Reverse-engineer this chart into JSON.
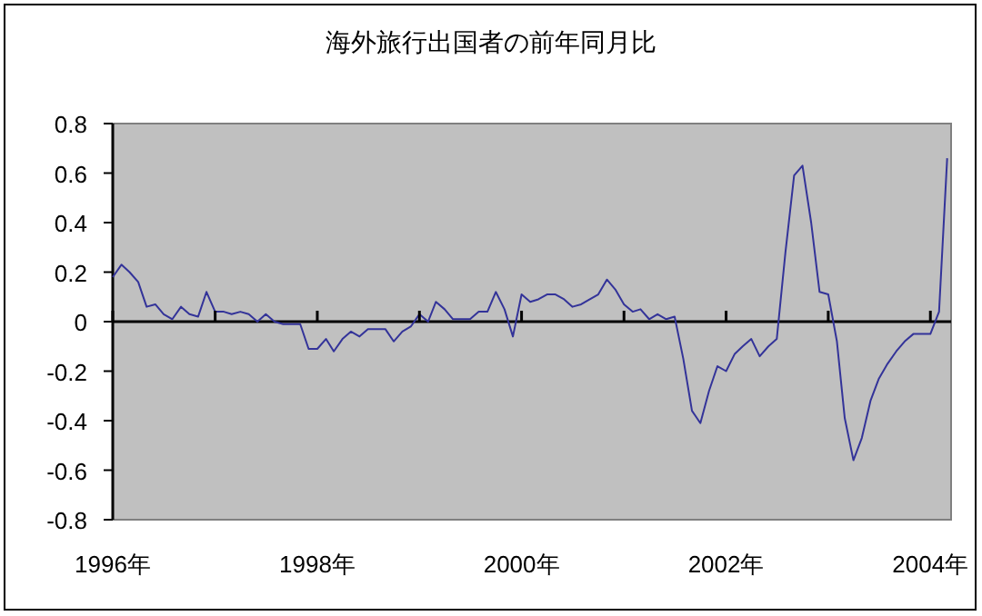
{
  "chart_data": {
    "type": "line",
    "title": "海外旅行出国者の前年同月比",
    "x": [
      "1996-01",
      "1996-02",
      "1996-03",
      "1996-04",
      "1996-05",
      "1996-06",
      "1996-07",
      "1996-08",
      "1996-09",
      "1996-10",
      "1996-11",
      "1996-12",
      "1997-01",
      "1997-02",
      "1997-03",
      "1997-04",
      "1997-05",
      "1997-06",
      "1997-07",
      "1997-08",
      "1997-09",
      "1997-10",
      "1997-11",
      "1997-12",
      "1998-01",
      "1998-02",
      "1998-03",
      "1998-04",
      "1998-05",
      "1998-06",
      "1998-07",
      "1998-08",
      "1998-09",
      "1998-10",
      "1998-11",
      "1998-12",
      "1999-01",
      "1999-02",
      "1999-03",
      "1999-04",
      "1999-05",
      "1999-06",
      "1999-07",
      "1999-08",
      "1999-09",
      "1999-10",
      "1999-11",
      "1999-12",
      "2000-01",
      "2000-02",
      "2000-03",
      "2000-04",
      "2000-05",
      "2000-06",
      "2000-07",
      "2000-08",
      "2000-09",
      "2000-10",
      "2000-11",
      "2000-12",
      "2001-01",
      "2001-02",
      "2001-03",
      "2001-04",
      "2001-05",
      "2001-06",
      "2001-07",
      "2001-08",
      "2001-09",
      "2001-10",
      "2001-11",
      "2001-12",
      "2002-01",
      "2002-02",
      "2002-03",
      "2002-04",
      "2002-05",
      "2002-06",
      "2002-07",
      "2002-08",
      "2002-09",
      "2002-10",
      "2002-11",
      "2002-12",
      "2003-01",
      "2003-02",
      "2003-03",
      "2003-04",
      "2003-05",
      "2003-06",
      "2003-07",
      "2003-08",
      "2003-09",
      "2003-10",
      "2003-11",
      "2003-12",
      "2004-01",
      "2004-02",
      "2004-03"
    ],
    "series": [
      {
        "color": "#333399",
        "values": [
          0.18,
          0.23,
          0.2,
          0.16,
          0.06,
          0.07,
          0.03,
          0.01,
          0.06,
          0.03,
          0.02,
          0.12,
          0.04,
          0.04,
          0.03,
          0.04,
          0.03,
          0.0,
          0.03,
          0.0,
          -0.01,
          -0.01,
          -0.01,
          -0.11,
          -0.11,
          -0.07,
          -0.12,
          -0.07,
          -0.04,
          -0.06,
          -0.03,
          -0.03,
          -0.03,
          -0.08,
          -0.04,
          -0.02,
          0.03,
          0.0,
          0.08,
          0.05,
          0.01,
          0.01,
          0.01,
          0.04,
          0.04,
          0.12,
          0.05,
          -0.06,
          0.11,
          0.08,
          0.09,
          0.11,
          0.11,
          0.09,
          0.06,
          0.07,
          0.09,
          0.11,
          0.17,
          0.13,
          0.07,
          0.04,
          0.05,
          0.01,
          0.03,
          0.01,
          0.02,
          -0.15,
          -0.36,
          -0.41,
          -0.28,
          -0.18,
          -0.2,
          -0.13,
          -0.1,
          -0.07,
          -0.14,
          -0.1,
          -0.07,
          0.28,
          0.59,
          0.63,
          0.4,
          0.12,
          0.11,
          -0.08,
          -0.39,
          -0.56,
          -0.47,
          -0.32,
          -0.23,
          -0.17,
          -0.12,
          -0.08,
          -0.05,
          -0.05,
          -0.05,
          0.04,
          0.66
        ]
      }
    ],
    "xlim": [
      "1996-01-01",
      "2004-03-15"
    ],
    "xticks": [
      {
        "value": "1996-01",
        "label": "1996年"
      },
      {
        "value": "1997-01",
        "label": null
      },
      {
        "value": "1998-01",
        "label": "1998年"
      },
      {
        "value": "1999-01",
        "label": null
      },
      {
        "value": "2000-01",
        "label": "2000年"
      },
      {
        "value": "2001-01",
        "label": null
      },
      {
        "value": "2002-01",
        "label": "2002年"
      },
      {
        "value": "2003-01",
        "label": null
      },
      {
        "value": "2004-01",
        "label": "2004年"
      }
    ],
    "ylim": [
      -0.8,
      0.8
    ],
    "yticks": [
      -0.8,
      -0.6,
      -0.4,
      -0.2,
      0,
      0.2,
      0.4,
      0.6,
      0.8
    ],
    "ref_lines": [
      {
        "axis": "y",
        "value": 0,
        "color": "#000000"
      }
    ],
    "marker": "none",
    "line_style": "solid"
  }
}
